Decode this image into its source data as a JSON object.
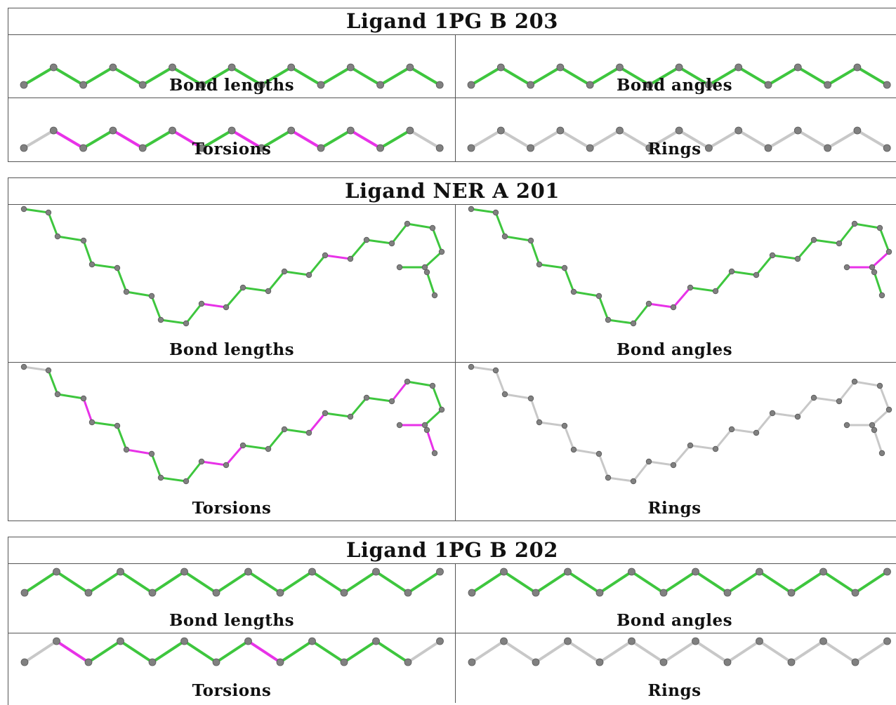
{
  "colors": {
    "ok": "#3ec63e",
    "flag": "#e832e8",
    "none": "#c8c8c8",
    "atom": "#808080"
  },
  "ligands": [
    {
      "title": "Ligand 1PG B 203",
      "panels": [
        {
          "label": "Bond lengths",
          "bonds": [
            "ok",
            "ok",
            "ok",
            "ok",
            "ok",
            "ok",
            "ok",
            "ok",
            "ok",
            "ok",
            "ok",
            "ok",
            "ok",
            "ok"
          ]
        },
        {
          "label": "Bond angles",
          "bonds": [
            "ok",
            "ok",
            "ok",
            "ok",
            "ok",
            "ok",
            "ok",
            "ok",
            "ok",
            "ok",
            "ok",
            "ok",
            "ok",
            "ok"
          ]
        },
        {
          "label": "Torsions",
          "bonds": [
            "none",
            "flag",
            "ok",
            "flag",
            "ok",
            "flag",
            "ok",
            "flag",
            "ok",
            "flag",
            "ok",
            "flag",
            "ok",
            "none"
          ]
        },
        {
          "label": "Rings",
          "bonds": [
            "none",
            "none",
            "none",
            "none",
            "none",
            "none",
            "none",
            "none",
            "none",
            "none",
            "none",
            "none",
            "none",
            "none"
          ]
        }
      ]
    },
    {
      "title": "Ligand NER A 201",
      "panels": [
        {
          "label": "Bond lengths",
          "bonds": [
            "ok",
            "ok",
            "ok",
            "ok",
            "ok",
            "ok",
            "ok",
            "ok",
            "ok",
            "ok",
            "flag",
            "ok",
            "ok",
            "ok",
            "ok",
            "ok",
            "flag",
            "ok",
            "ok",
            "ok",
            "ok",
            "ok",
            "ok",
            "ok",
            "ok",
            "ok",
            "ok",
            "ok",
            "none",
            "none",
            "none"
          ]
        },
        {
          "label": "Bond angles",
          "bonds": [
            "ok",
            "ok",
            "ok",
            "ok",
            "ok",
            "ok",
            "ok",
            "ok",
            "ok",
            "ok",
            "flag",
            "flag",
            "ok",
            "ok",
            "ok",
            "ok",
            "ok",
            "ok",
            "ok",
            "ok",
            "ok",
            "ok",
            "flag",
            "flag",
            "ok",
            "ok",
            "ok",
            "ok",
            "none",
            "none",
            "none"
          ]
        },
        {
          "label": "Torsions",
          "bonds": [
            "none",
            "ok",
            "ok",
            "flag",
            "ok",
            "ok",
            "flag",
            "ok",
            "ok",
            "ok",
            "flag",
            "flag",
            "ok",
            "ok",
            "ok",
            "flag",
            "ok",
            "ok",
            "ok",
            "flag",
            "ok",
            "ok",
            "ok",
            "flag",
            "ok",
            "flag",
            "flag",
            "none",
            "none",
            "none",
            "none"
          ]
        },
        {
          "label": "Rings",
          "bonds": [
            "none",
            "none",
            "none",
            "none",
            "none",
            "none",
            "none",
            "none",
            "none",
            "none",
            "none",
            "none",
            "none",
            "none",
            "none",
            "none",
            "none",
            "none",
            "none",
            "none",
            "none",
            "none",
            "none",
            "none",
            "none",
            "none",
            "none",
            "none",
            "none",
            "none",
            "none"
          ]
        }
      ]
    },
    {
      "title": "Ligand 1PG B 202",
      "panels": [
        {
          "label": "Bond lengths",
          "bonds": [
            "ok",
            "ok",
            "ok",
            "ok",
            "ok",
            "ok",
            "ok",
            "ok",
            "ok",
            "ok",
            "ok",
            "ok",
            "ok"
          ]
        },
        {
          "label": "Bond angles",
          "bonds": [
            "ok",
            "ok",
            "ok",
            "ok",
            "ok",
            "ok",
            "ok",
            "ok",
            "ok",
            "ok",
            "ok",
            "ok",
            "ok"
          ]
        },
        {
          "label": "Torsions",
          "bonds": [
            "none",
            "flag",
            "ok",
            "ok",
            "ok",
            "ok",
            "ok",
            "flag",
            "ok",
            "ok",
            "ok",
            "ok",
            "none"
          ]
        },
        {
          "label": "Rings",
          "bonds": [
            "none",
            "none",
            "none",
            "none",
            "none",
            "none",
            "none",
            "none",
            "none",
            "none",
            "none",
            "none",
            "none"
          ]
        }
      ]
    }
  ]
}
